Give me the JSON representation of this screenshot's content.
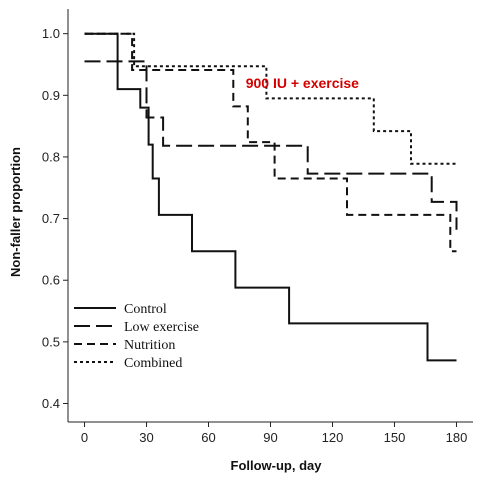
{
  "chart_data": {
    "type": "line",
    "step": true,
    "title": "",
    "xlabel": "Follow-up, day",
    "ylabel": "Non-faller proportion",
    "xlim": [
      -8,
      188
    ],
    "ylim": [
      0.37,
      1.04
    ],
    "xticks": [
      0,
      30,
      60,
      90,
      120,
      150,
      180
    ],
    "xtick_labels": [
      "0",
      "30",
      "60",
      "90",
      "120",
      "150",
      "180"
    ],
    "yticks": [
      0.4,
      0.5,
      0.6,
      0.7,
      0.8,
      0.9,
      1.0
    ],
    "ytick_labels": [
      "0.4",
      "0.5",
      "0.6",
      "0.7",
      "0.8",
      "0.9",
      "1.0"
    ],
    "grid": false,
    "legend_position": "bottom-left",
    "annotation": {
      "text": "900 IU + exercise",
      "color": "#d40000",
      "x": 78,
      "y": 0.92
    },
    "series": [
      {
        "name": "Control",
        "dash": "solid",
        "x": [
          0,
          16,
          27,
          31,
          33,
          36,
          52,
          73,
          99,
          166,
          180
        ],
        "y": [
          1.0,
          0.91,
          0.88,
          0.82,
          0.765,
          0.706,
          0.647,
          0.588,
          0.53,
          0.47,
          0.47
        ]
      },
      {
        "name": "Low exercise",
        "dash": "long",
        "x": [
          0,
          4,
          15,
          30,
          38,
          78,
          108,
          140,
          168,
          180
        ],
        "y": [
          0.955,
          0.955,
          0.955,
          0.864,
          0.818,
          0.818,
          0.773,
          0.773,
          0.727,
          0.682
        ]
      },
      {
        "name": "Nutrition",
        "dash": "medium",
        "x": [
          0,
          20,
          23,
          56,
          72,
          79,
          92,
          105,
          127,
          177,
          180
        ],
        "y": [
          1.0,
          1.0,
          0.941,
          0.941,
          0.882,
          0.824,
          0.765,
          0.765,
          0.706,
          0.647,
          0.647
        ]
      },
      {
        "name": "Combined",
        "dash": "short",
        "x": [
          0,
          17,
          24,
          88,
          140,
          158,
          180
        ],
        "y": [
          1.0,
          1.0,
          0.947,
          0.895,
          0.842,
          0.789,
          0.789
        ]
      }
    ]
  }
}
